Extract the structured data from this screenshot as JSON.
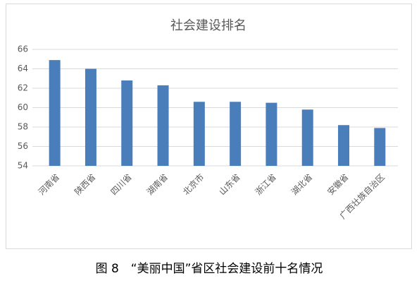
{
  "chart_data": {
    "type": "bar",
    "title": "社会建设排名",
    "categories": [
      "河南省",
      "陕西省",
      "四川省",
      "湖南省",
      "北京市",
      "山东省",
      "浙江省",
      "湖北省",
      "安徽省",
      "广西壮族自治区"
    ],
    "values": [
      64.9,
      64.0,
      62.8,
      62.3,
      60.6,
      60.6,
      60.5,
      59.8,
      58.2,
      57.9
    ],
    "color": "#4a7ebb",
    "ylim": [
      54,
      66
    ],
    "yticks": [
      54,
      56,
      58,
      60,
      62,
      64,
      66
    ],
    "grid": true
  },
  "caption": "图 8　“美丽中国”省区社会建设前十名情况"
}
